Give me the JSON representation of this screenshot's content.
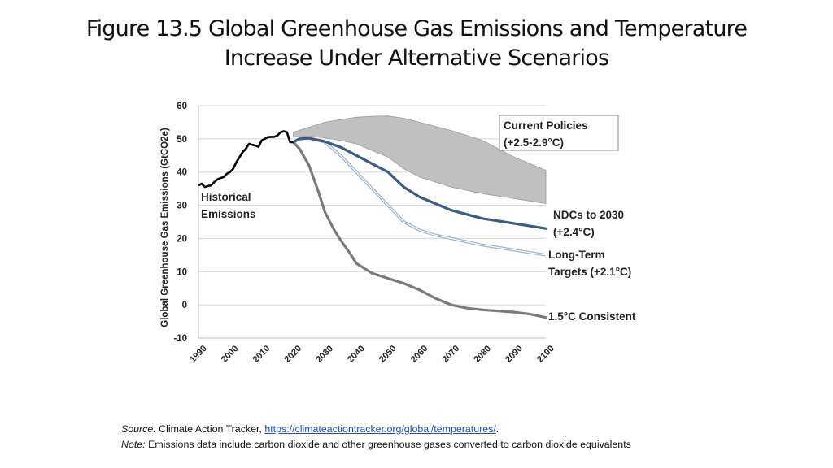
{
  "slide": {
    "title_line1": "Figure 13.5 Global Greenhouse Gas Emissions and Temperature",
    "title_line2": "Increase Under Alternative Scenarios"
  },
  "footnote": {
    "source_label": "Source:",
    "source_text": "Climate Action Tracker,",
    "source_url": "https://climateactiontracker.org/global/temperatures/",
    "source_end": ".",
    "note_label": "Note:",
    "note_text": "Emissions data include carbon dioxide and other greenhouse gases converted to carbon dioxide equivalents"
  },
  "colors": {
    "historical": "#000000",
    "current_policies_fill": "#c0c0c0",
    "ndcs": "#3d5a80",
    "long_term": "#9fb3cc",
    "consistent_1_5": "#7a7a7a",
    "grid": "#d6d6d6"
  },
  "chart_data": {
    "type": "line",
    "title": "",
    "ylabel": "Global Greenhouse Gas Emissions (GtCO2e)",
    "xlabel": "",
    "xlim": [
      1990,
      2100
    ],
    "ylim": [
      -10,
      60
    ],
    "xticks": [
      "1990",
      "2000",
      "2010",
      "2020",
      "2030",
      "2040",
      "2050",
      "2060",
      "2070",
      "2080",
      "2090",
      "2100"
    ],
    "yticks": [
      "60",
      "50",
      "40",
      "30",
      "20",
      "10",
      "0",
      "-10"
    ],
    "grid": true,
    "series": [
      {
        "name": "Historical Emissions",
        "label_lines": [
          "Historical",
          "Emissions"
        ],
        "x": [
          1990,
          1991,
          1992,
          1993,
          1994,
          1995,
          1996,
          1997,
          1998,
          1999,
          2000,
          2001,
          2002,
          2003,
          2004,
          2005,
          2006,
          2007,
          2008,
          2009,
          2010,
          2011,
          2012,
          2013,
          2014,
          2015,
          2016,
          2017,
          2018,
          2019,
          2020
        ],
        "values": [
          36,
          36.5,
          35.5,
          35.8,
          36,
          37,
          37.8,
          38.2,
          38.5,
          39.5,
          40,
          41,
          43,
          44.5,
          46,
          47,
          48.5,
          48.2,
          48,
          47.6,
          49.5,
          50,
          50.5,
          50.6,
          50.6,
          51,
          52,
          52.3,
          52,
          49,
          49
        ]
      },
      {
        "name": "Current Policies (+2.5-2.9°C)",
        "label_lines": [
          "Current Policies",
          "(+2.5-2.9°C)"
        ],
        "x": [
          2020,
          2025,
          2030,
          2035,
          2040,
          2045,
          2050,
          2055,
          2060,
          2070,
          2080,
          2090,
          2100
        ],
        "upper": [
          52,
          53.5,
          55,
          55.8,
          56.5,
          56.8,
          56.9,
          56.2,
          55,
          52.5,
          49.5,
          44.5,
          40.5
        ],
        "lower": [
          50.5,
          50.8,
          50.3,
          49.5,
          48.5,
          46.5,
          44.5,
          41,
          38.5,
          35.5,
          33.5,
          32,
          30.5
        ]
      },
      {
        "name": "NDCs to 2030 (+2.4°C)",
        "label_lines": [
          "NDCs to 2030",
          "(+2.4°C)"
        ],
        "x": [
          2020,
          2022,
          2025,
          2030,
          2035,
          2040,
          2045,
          2050,
          2055,
          2060,
          2065,
          2070,
          2080,
          2090,
          2100
        ],
        "values": [
          49,
          50,
          50.2,
          49.2,
          47.5,
          45,
          42.5,
          40,
          35.5,
          32.5,
          30.5,
          28.5,
          26,
          24.5,
          23
        ]
      },
      {
        "name": "Long-Term Targets (+2.1°C)",
        "label_lines": [
          "Long-Term",
          "Targets (+2.1°C)"
        ],
        "x": [
          2020,
          2022,
          2025,
          2030,
          2035,
          2040,
          2045,
          2050,
          2055,
          2060,
          2065,
          2070,
          2080,
          2090,
          2100
        ],
        "values": [
          49,
          50,
          50.2,
          49,
          45,
          40,
          35,
          30,
          25,
          22.5,
          21,
          20,
          18,
          16.5,
          15
        ]
      },
      {
        "name": "1.5°C Consistent",
        "label_lines": [
          "1.5°C Consistent"
        ],
        "x": [
          2020,
          2022,
          2025,
          2028,
          2030,
          2033,
          2035,
          2038,
          2040,
          2045,
          2050,
          2055,
          2060,
          2065,
          2070,
          2075,
          2080,
          2090,
          2095,
          2100
        ],
        "values": [
          49,
          47,
          42,
          34,
          28,
          22.5,
          19.5,
          15.5,
          12.5,
          9.5,
          8,
          6.5,
          4.5,
          2,
          0,
          -1,
          -1.5,
          -2.2,
          -2.8,
          -3.8
        ]
      }
    ]
  }
}
